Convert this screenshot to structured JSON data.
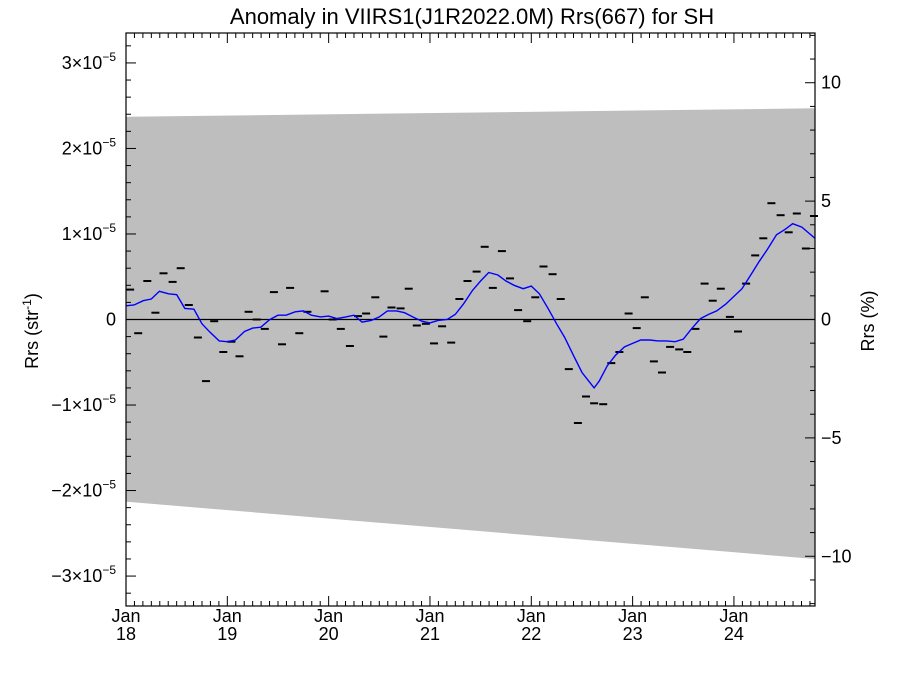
{
  "chart_data": {
    "type": "line",
    "title": "Anomaly in VIIRS1(J1R2022.0M) Rrs(667) for SH",
    "ylabel_left": "Rrs (str",
    "ylabel_left_exp": "-1",
    "ylabel_left_close": ")",
    "ylabel_right": "Rrs (%)",
    "x_range": [
      2018.0,
      2024.8
    ],
    "y_range_left": [
      -3.35e-05,
      3.35e-05
    ],
    "y_range_right": [
      -12.1,
      12.1
    ],
    "y_ticks_left": [
      {
        "value": 3e-05,
        "mant": "3×10",
        "exp": "−5"
      },
      {
        "value": 2e-05,
        "mant": "2×10",
        "exp": "−5"
      },
      {
        "value": 1e-05,
        "mant": "1×10",
        "exp": "−5"
      },
      {
        "value": 0,
        "mant": "0",
        "exp": ""
      },
      {
        "value": -1e-05,
        "mant": "−1×10",
        "exp": "−5"
      },
      {
        "value": -2e-05,
        "mant": "−2×10",
        "exp": "−5"
      },
      {
        "value": -3e-05,
        "mant": "−3×10",
        "exp": "−5"
      }
    ],
    "y_ticks_right": [
      {
        "value": 10,
        "label": "10"
      },
      {
        "value": 5,
        "label": "5"
      },
      {
        "value": 0,
        "label": "0"
      },
      {
        "value": -5,
        "label": "−5"
      },
      {
        "value": -10,
        "label": "−10"
      }
    ],
    "x_ticks": [
      {
        "value": 2018,
        "month": "Jan",
        "year": "18"
      },
      {
        "value": 2019,
        "month": "Jan",
        "year": "19"
      },
      {
        "value": 2020,
        "month": "Jan",
        "year": "20"
      },
      {
        "value": 2021,
        "month": "Jan",
        "year": "21"
      },
      {
        "value": 2022,
        "month": "Jan",
        "year": "22"
      },
      {
        "value": 2023,
        "month": "Jan",
        "year": "23"
      },
      {
        "value": 2024,
        "month": "Jan",
        "year": "24"
      }
    ],
    "uncertainty_band": {
      "upper": [
        [
          2018.0,
          2.37e-05
        ],
        [
          2024.8,
          2.47e-05
        ]
      ],
      "lower": [
        [
          2018.0,
          -2.13e-05
        ],
        [
          2024.8,
          -2.8e-05
        ]
      ],
      "color": "#bebebe"
    },
    "zero_line": true,
    "series": [
      {
        "kind": "markers",
        "color": "#000000",
        "points": [
          [
            2018.04,
            3.5e-06
          ],
          [
            2018.12,
            -1.6e-06
          ],
          [
            2018.21,
            4.5e-06
          ],
          [
            2018.29,
            8e-07
          ],
          [
            2018.37,
            5.4e-06
          ],
          [
            2018.46,
            4.4e-06
          ],
          [
            2018.54,
            6e-06
          ],
          [
            2018.62,
            1.7e-06
          ],
          [
            2018.71,
            -2.1e-06
          ],
          [
            2018.79,
            -7.2e-06
          ],
          [
            2018.87,
            -2e-07
          ],
          [
            2018.96,
            -3.8e-06
          ],
          [
            2019.04,
            -2.6e-06
          ],
          [
            2019.12,
            -4.3e-06
          ],
          [
            2019.21,
            9e-07
          ],
          [
            2019.29,
            0.0
          ],
          [
            2019.37,
            -1.1e-06
          ],
          [
            2019.46,
            3.2e-06
          ],
          [
            2019.54,
            -2.9e-06
          ],
          [
            2019.62,
            3.7e-06
          ],
          [
            2019.71,
            -1.6e-06
          ],
          [
            2019.79,
            9e-07
          ],
          [
            2019.96,
            3.3e-06
          ],
          [
            2020.04,
            0.0
          ],
          [
            2020.12,
            -1.1e-06
          ],
          [
            2020.21,
            -3.1e-06
          ],
          [
            2020.29,
            4e-07
          ],
          [
            2020.37,
            7e-07
          ],
          [
            2020.46,
            2.6e-06
          ],
          [
            2020.54,
            -2e-06
          ],
          [
            2020.62,
            1.4e-06
          ],
          [
            2020.71,
            1.3e-06
          ],
          [
            2020.79,
            3.6e-06
          ],
          [
            2020.87,
            -7e-07
          ],
          [
            2020.96,
            -5e-07
          ],
          [
            2021.04,
            -2.8e-06
          ],
          [
            2021.12,
            -8e-07
          ],
          [
            2021.21,
            -2.7e-06
          ],
          [
            2021.29,
            2.4e-06
          ],
          [
            2021.37,
            4.5e-06
          ],
          [
            2021.46,
            5.6e-06
          ],
          [
            2021.54,
            8.5e-06
          ],
          [
            2021.62,
            3.7e-06
          ],
          [
            2021.71,
            8e-06
          ],
          [
            2021.79,
            4.8e-06
          ],
          [
            2021.87,
            1.1e-06
          ],
          [
            2021.96,
            -2e-07
          ],
          [
            2022.04,
            2.6e-06
          ],
          [
            2022.12,
            6.2e-06
          ],
          [
            2022.21,
            5.3e-06
          ],
          [
            2022.29,
            2.4e-06
          ],
          [
            2022.37,
            -5.8e-06
          ],
          [
            2022.46,
            -1.21e-05
          ],
          [
            2022.54,
            -9e-06
          ],
          [
            2022.62,
            -9.8e-06
          ],
          [
            2022.71,
            -9.9e-06
          ],
          [
            2022.79,
            -5.1e-06
          ],
          [
            2022.87,
            -3.8e-06
          ],
          [
            2022.96,
            7e-07
          ],
          [
            2023.04,
            -1e-06
          ],
          [
            2023.12,
            2.6e-06
          ],
          [
            2023.21,
            -4.9e-06
          ],
          [
            2023.29,
            -6.2e-06
          ],
          [
            2023.37,
            -3.2e-06
          ],
          [
            2023.46,
            -3.5e-06
          ],
          [
            2023.54,
            -3.8e-06
          ],
          [
            2023.62,
            -1.1e-06
          ],
          [
            2023.71,
            4.2e-06
          ],
          [
            2023.79,
            2.2e-06
          ],
          [
            2023.87,
            3.6e-06
          ],
          [
            2023.96,
            3e-07
          ],
          [
            2024.04,
            -1.4e-06
          ],
          [
            2024.12,
            4.2e-06
          ],
          [
            2024.21,
            7.5e-06
          ],
          [
            2024.29,
            9.5e-06
          ],
          [
            2024.37,
            1.36e-05
          ],
          [
            2024.46,
            1.22e-05
          ],
          [
            2024.54,
            1.02e-05
          ],
          [
            2024.62,
            1.24e-05
          ],
          [
            2024.71,
            8.3e-06
          ],
          [
            2024.79,
            1.21e-05
          ]
        ]
      },
      {
        "kind": "line",
        "color": "#0000ff",
        "points": [
          [
            2018.0,
            1.6e-06
          ],
          [
            2018.08,
            1.7e-06
          ],
          [
            2018.17,
            2.2e-06
          ],
          [
            2018.25,
            2.4e-06
          ],
          [
            2018.33,
            3.3e-06
          ],
          [
            2018.42,
            3e-06
          ],
          [
            2018.5,
            2.9e-06
          ],
          [
            2018.58,
            1.3e-06
          ],
          [
            2018.67,
            1.2e-06
          ],
          [
            2018.75,
            -5e-07
          ],
          [
            2018.83,
            -1.5e-06
          ],
          [
            2018.92,
            -2.5e-06
          ],
          [
            2019.0,
            -2.6e-06
          ],
          [
            2019.08,
            -2.4e-06
          ],
          [
            2019.17,
            -1.4e-06
          ],
          [
            2019.25,
            -1e-06
          ],
          [
            2019.33,
            -9e-07
          ],
          [
            2019.42,
            0.0
          ],
          [
            2019.5,
            5e-07
          ],
          [
            2019.58,
            5e-07
          ],
          [
            2019.67,
            9e-07
          ],
          [
            2019.75,
            1e-06
          ],
          [
            2019.83,
            5e-07
          ],
          [
            2019.92,
            3e-07
          ],
          [
            2020.0,
            4e-07
          ],
          [
            2020.08,
            1e-07
          ],
          [
            2020.17,
            3e-07
          ],
          [
            2020.25,
            5e-07
          ],
          [
            2020.33,
            -3e-07
          ],
          [
            2020.42,
            -1e-07
          ],
          [
            2020.5,
            3e-07
          ],
          [
            2020.58,
            1e-06
          ],
          [
            2020.67,
            1e-06
          ],
          [
            2020.75,
            8e-07
          ],
          [
            2020.83,
            3e-07
          ],
          [
            2020.92,
            -2e-07
          ],
          [
            2021.0,
            -4e-07
          ],
          [
            2021.08,
            -1e-07
          ],
          [
            2021.17,
            0.0
          ],
          [
            2021.25,
            6e-07
          ],
          [
            2021.33,
            1.8e-06
          ],
          [
            2021.42,
            3.4e-06
          ],
          [
            2021.5,
            4.5e-06
          ],
          [
            2021.58,
            5.5e-06
          ],
          [
            2021.67,
            5.2e-06
          ],
          [
            2021.75,
            4.5e-06
          ],
          [
            2021.83,
            4e-06
          ],
          [
            2021.92,
            3.6e-06
          ],
          [
            2022.0,
            3.9e-06
          ],
          [
            2022.08,
            3e-06
          ],
          [
            2022.17,
            1.2e-06
          ],
          [
            2022.25,
            -5e-07
          ],
          [
            2022.33,
            -2.1e-06
          ],
          [
            2022.42,
            -4.3e-06
          ],
          [
            2022.5,
            -6.2e-06
          ],
          [
            2022.58,
            -7.4e-06
          ],
          [
            2022.62,
            -8e-06
          ],
          [
            2022.67,
            -7.2e-06
          ],
          [
            2022.75,
            -5.4e-06
          ],
          [
            2022.83,
            -4.2e-06
          ],
          [
            2022.92,
            -3.2e-06
          ],
          [
            2023.0,
            -2.8e-06
          ],
          [
            2023.08,
            -2.4e-06
          ],
          [
            2023.17,
            -2.4e-06
          ],
          [
            2023.25,
            -2.5e-06
          ],
          [
            2023.33,
            -2.5e-06
          ],
          [
            2023.42,
            -2.6e-06
          ],
          [
            2023.5,
            -2.3e-06
          ],
          [
            2023.58,
            -1.1e-06
          ],
          [
            2023.67,
            1e-07
          ],
          [
            2023.75,
            6e-07
          ],
          [
            2023.83,
            1e-06
          ],
          [
            2023.92,
            1.8e-06
          ],
          [
            2024.0,
            2.7e-06
          ],
          [
            2024.08,
            3.6e-06
          ],
          [
            2024.17,
            5.3e-06
          ],
          [
            2024.25,
            6.8e-06
          ],
          [
            2024.33,
            8.2e-06
          ],
          [
            2024.42,
            9.9e-06
          ],
          [
            2024.5,
            1.05e-05
          ],
          [
            2024.58,
            1.12e-05
          ],
          [
            2024.67,
            1.08e-05
          ],
          [
            2024.75,
            1e-05
          ],
          [
            2024.8,
            9.5e-06
          ]
        ]
      }
    ]
  }
}
